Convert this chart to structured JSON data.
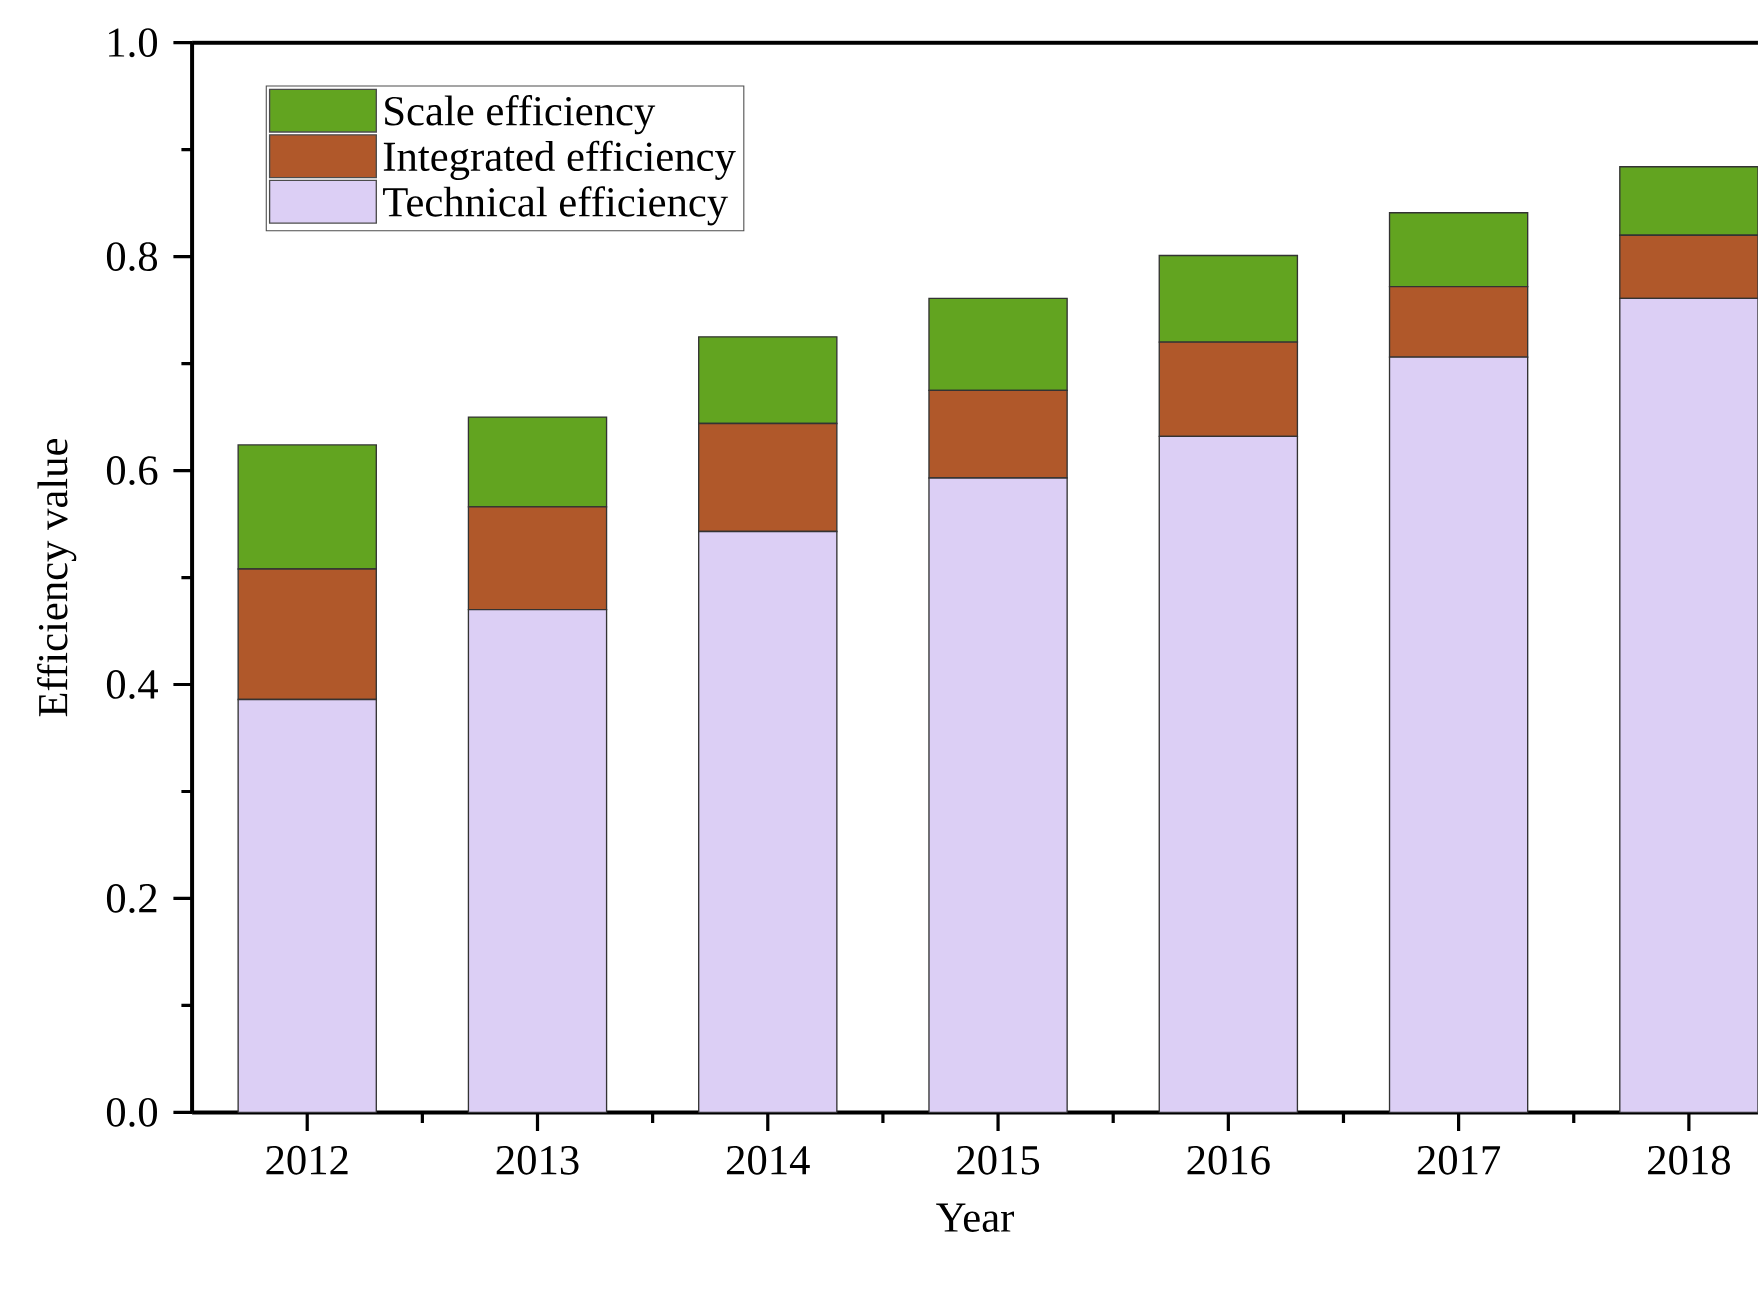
{
  "chart_data": {
    "type": "bar",
    "stacked": true,
    "xlabel": "Year",
    "ylabel": "Efficiency value",
    "categories": [
      "2012",
      "2013",
      "2014",
      "2015",
      "2016",
      "2017",
      "2018"
    ],
    "series": [
      {
        "name": "Technical efficiency",
        "color": "#dccff5",
        "values": [
          0.386,
          0.47,
          0.543,
          0.593,
          0.632,
          0.706,
          0.761
        ]
      },
      {
        "name": "Integrated efficiency",
        "color": "#b0582a",
        "values": [
          0.122,
          0.096,
          0.101,
          0.082,
          0.088,
          0.066,
          0.059
        ]
      },
      {
        "name": "Scale efficiency",
        "color": "#62a420",
        "values": [
          0.116,
          0.084,
          0.081,
          0.086,
          0.081,
          0.069,
          0.064
        ]
      }
    ],
    "ylim": [
      0,
      1.0
    ],
    "yticks": [
      {
        "value": 0,
        "label": "0.0"
      },
      0.2,
      0.4,
      0.6,
      0.8,
      {
        "value": 1.0,
        "label": "1.0"
      }
    ],
    "legend": "top left",
    "grid": false
  }
}
